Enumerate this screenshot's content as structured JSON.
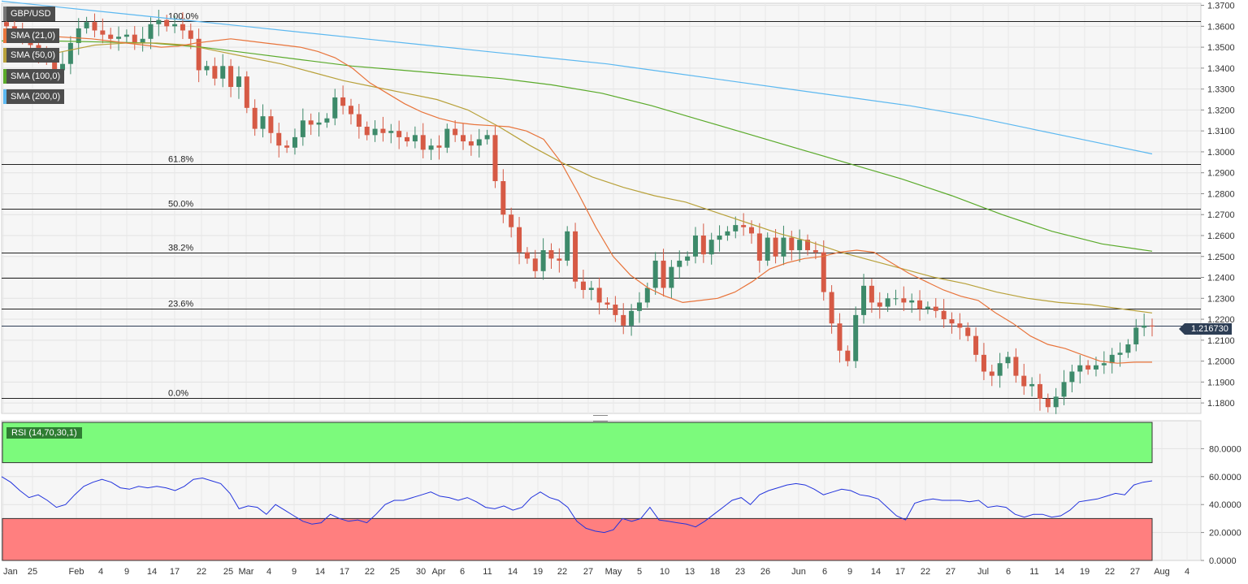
{
  "symbol": "GBP/USD",
  "legend": [
    {
      "label": "SMA (21,0)",
      "color": "#e8743b"
    },
    {
      "label": "SMA (50,0)",
      "color": "#b8a13a"
    },
    {
      "label": "SMA (100,0)",
      "color": "#5aaa2a"
    },
    {
      "label": "SMA (200,0)",
      "color": "#5cb8f0"
    }
  ],
  "last_price": "1.216730",
  "rsi_label": "RSI (14,70,30,1)",
  "chart_data": {
    "type": "candlestick",
    "title": "GBP/USD",
    "ylim": [
      1.175,
      1.371
    ],
    "y_ticks": [
      "1.1800",
      "1.1900",
      "1.2000",
      "1.2100",
      "1.2200",
      "1.2300",
      "1.2400",
      "1.2500",
      "1.2600",
      "1.2700",
      "1.2800",
      "1.2900",
      "1.3000",
      "1.3100",
      "1.3200",
      "1.3300",
      "1.3400",
      "1.3500",
      "1.3600",
      "1.3700"
    ],
    "x_ticks": [
      "Jan",
      "25",
      "Feb",
      "4",
      "9",
      "14",
      "17",
      "22",
      "25",
      "Mar",
      "4",
      "9",
      "14",
      "17",
      "22",
      "25",
      "30",
      "Apr",
      "6",
      "11",
      "14",
      "19",
      "22",
      "27",
      "May",
      "5",
      "10",
      "13",
      "18",
      "23",
      "26",
      "Jun",
      "6",
      "9",
      "14",
      "17",
      "22",
      "27",
      "Jul",
      "6",
      "11",
      "14",
      "19",
      "22",
      "27",
      "Aug",
      "4"
    ],
    "fib_levels": [
      {
        "label": "100.0%",
        "value": 1.3625
      },
      {
        "label": "61.8%",
        "value": 1.294
      },
      {
        "label": "50.0%",
        "value": 1.273
      },
      {
        "label": "38.2%",
        "value": 1.252
      },
      {
        "label": "",
        "value": 1.24
      },
      {
        "label": "23.6%",
        "value": 1.225
      },
      {
        "label": "0.0%",
        "value": 1.1825
      }
    ],
    "closes": [
      1.36,
      1.356,
      1.3555,
      1.351,
      1.348,
      1.344,
      1.339,
      1.342,
      1.352,
      1.359,
      1.362,
      1.358,
      1.356,
      1.354,
      1.355,
      1.356,
      1.352,
      1.354,
      1.361,
      1.363,
      1.36,
      1.361,
      1.358,
      1.354,
      1.339,
      1.341,
      1.335,
      1.341,
      1.331,
      1.336,
      1.321,
      1.311,
      1.317,
      1.309,
      1.303,
      1.302,
      1.307,
      1.315,
      1.313,
      1.314,
      1.316,
      1.326,
      1.322,
      1.318,
      1.312,
      1.308,
      1.311,
      1.309,
      1.31,
      1.307,
      1.305,
      1.308,
      1.301,
      1.303,
      1.302,
      1.311,
      1.308,
      1.305,
      1.303,
      1.306,
      1.308,
      1.286,
      1.27,
      1.264,
      1.252,
      1.249,
      1.243,
      1.253,
      1.249,
      1.248,
      1.262,
      1.238,
      1.234,
      1.235,
      1.228,
      1.227,
      1.222,
      1.217,
      1.224,
      1.228,
      1.235,
      1.248,
      1.235,
      1.245,
      1.248,
      1.25,
      1.26,
      1.251,
      1.258,
      1.26,
      1.262,
      1.265,
      1.264,
      1.261,
      1.248,
      1.259,
      1.25,
      1.259,
      1.253,
      1.258,
      1.253,
      1.252,
      1.233,
      1.218,
      1.205,
      1.2,
      1.222,
      1.236,
      1.228,
      1.226,
      1.23,
      1.23,
      1.228,
      1.229,
      1.225,
      1.226,
      1.224,
      1.22,
      1.218,
      1.216,
      1.212,
      1.203,
      1.195,
      1.193,
      1.199,
      1.202,
      1.193,
      1.188,
      1.189,
      1.182,
      1.178,
      1.183,
      1.19,
      1.195,
      1.198,
      1.196,
      1.198,
      1.199,
      1.203,
      1.204,
      1.208,
      1.216,
      1.217,
      1.2167
    ],
    "sma21": [
      1.355,
      1.3545,
      1.354,
      1.353,
      1.352,
      1.351,
      1.35,
      1.3505,
      1.352,
      1.353,
      1.354,
      1.353,
      1.352,
      1.351,
      1.35,
      1.348,
      1.345,
      1.34,
      1.333,
      1.328,
      1.323,
      1.319,
      1.316,
      1.314,
      1.313,
      1.3125,
      1.312,
      1.31,
      1.306,
      1.295,
      1.28,
      1.264,
      1.25,
      1.241,
      1.235,
      1.231,
      1.228,
      1.229,
      1.23,
      1.233,
      1.238,
      1.244,
      1.247,
      1.249,
      1.25,
      1.252,
      1.253,
      1.252,
      1.247,
      1.242,
      1.238,
      1.234,
      1.231,
      1.229,
      1.223,
      1.218,
      1.212,
      1.208,
      1.206,
      1.203,
      1.2,
      1.199,
      1.1995,
      1.1995
    ],
    "sma50": [
      1.345,
      1.348,
      1.351,
      1.352,
      1.352,
      1.351,
      1.348,
      1.345,
      1.342,
      1.338,
      1.334,
      1.331,
      1.328,
      1.325,
      1.32,
      1.312,
      1.303,
      1.295,
      1.288,
      1.283,
      1.279,
      1.276,
      1.271,
      1.266,
      1.261,
      1.257,
      1.252,
      1.248,
      1.244,
      1.24,
      1.237,
      1.233,
      1.23,
      1.228,
      1.227,
      1.225,
      1.223
    ],
    "sma100": [
      1.353,
      1.353,
      1.3525,
      1.352,
      1.35,
      1.347,
      1.344,
      1.341,
      1.339,
      1.337,
      1.335,
      1.332,
      1.328,
      1.322,
      1.315,
      1.308,
      1.301,
      1.294,
      1.287,
      1.279,
      1.27,
      1.262,
      1.256,
      1.2525
    ],
    "sma200": [
      1.372,
      1.369,
      1.366,
      1.363,
      1.36,
      1.357,
      1.354,
      1.351,
      1.348,
      1.345,
      1.342,
      1.338,
      1.334,
      1.33,
      1.326,
      1.322,
      1.317,
      1.311,
      1.305,
      1.299
    ],
    "rsi": {
      "ylim": [
        0,
        100
      ],
      "y_ticks": [
        "0.0000",
        "20.0000",
        "40.0000",
        "60.0000",
        "80.0000"
      ],
      "overbought": 70,
      "oversold": 30,
      "values": [
        60,
        56,
        50,
        45,
        47,
        43,
        38,
        40,
        47,
        53,
        56,
        58,
        56,
        52,
        51,
        53,
        52,
        53,
        52,
        50,
        53,
        58,
        59,
        57,
        55,
        48,
        37,
        39,
        38,
        33,
        40,
        36,
        32,
        28,
        26,
        27,
        33,
        30,
        28,
        29,
        27,
        33,
        40,
        43,
        43,
        45,
        47,
        49,
        46,
        45,
        43,
        45,
        42,
        38,
        37,
        39,
        36,
        38,
        45,
        49,
        45,
        43,
        38,
        28,
        23,
        21,
        20,
        22,
        30,
        28,
        30,
        38,
        29,
        28,
        27,
        26,
        24,
        28,
        33,
        38,
        43,
        45,
        40,
        47,
        50,
        52,
        54,
        55,
        54,
        51,
        47,
        49,
        51,
        50,
        47,
        46,
        44,
        38,
        32,
        29,
        41,
        43,
        44,
        43,
        43,
        43,
        42,
        43,
        38,
        39,
        38,
        33,
        31,
        33,
        33,
        31,
        32,
        36,
        42,
        43,
        44,
        46,
        48,
        47,
        54,
        56,
        57
      ]
    }
  }
}
